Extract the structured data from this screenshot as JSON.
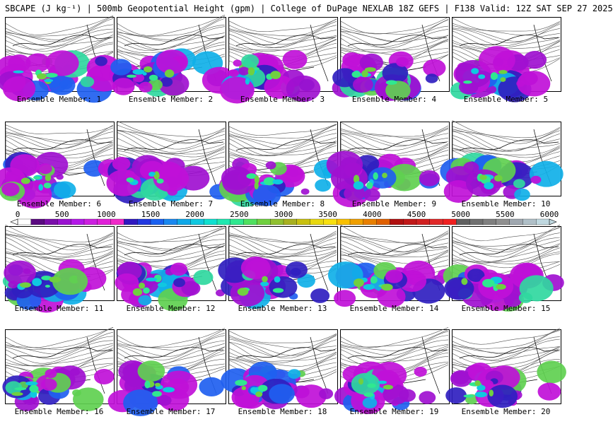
{
  "title": "SBCAPE (J kg⁻¹) | 500mb Geopotential Height (gpm) | College of DuPage NEXLAB 18Z GEFS | F138 Valid: 12Z SAT SEP 27 2025",
  "member_prefix": "Ensemble Member:",
  "members": [
    {
      "number": "1"
    },
    {
      "number": "2"
    },
    {
      "number": "3"
    },
    {
      "number": "4"
    },
    {
      "number": "5"
    },
    {
      "number": "6"
    },
    {
      "number": "7"
    },
    {
      "number": "8"
    },
    {
      "number": "9"
    },
    {
      "number": "10"
    },
    {
      "number": "11"
    },
    {
      "number": "12"
    },
    {
      "number": "13"
    },
    {
      "number": "14"
    },
    {
      "number": "15"
    },
    {
      "number": "16"
    },
    {
      "number": "17"
    },
    {
      "number": "18"
    },
    {
      "number": "19"
    },
    {
      "number": "20"
    }
  ],
  "colorbar": {
    "labels": [
      "0",
      "500",
      "1000",
      "1500",
      "2000",
      "2500",
      "3000",
      "3500",
      "4000",
      "4500",
      "5000",
      "5500",
      "6000"
    ],
    "min": 0,
    "max": 6000,
    "colors": [
      "#ffffff",
      "#5a0a80",
      "#7a0eaa",
      "#9a12d0",
      "#b418e8",
      "#cc20e0",
      "#e020d8",
      "#f028c8",
      "#3018c0",
      "#2238e0",
      "#1a60f0",
      "#1a88f0",
      "#10a8e8",
      "#10c8e0",
      "#10e0d0",
      "#20e8b0",
      "#30e890",
      "#50e060",
      "#70d040",
      "#90c030",
      "#a8b020",
      "#c8c010",
      "#e8d810",
      "#f8e010",
      "#f8c000",
      "#f0a000",
      "#e88000",
      "#e06000",
      "#b01010",
      "#c01818",
      "#d02020",
      "#e02828",
      "#f02020",
      "#606060",
      "#707070",
      "#808080",
      "#909090",
      "#a0a8b0",
      "#b0c0c8",
      "#c0d8e0"
    ]
  }
}
